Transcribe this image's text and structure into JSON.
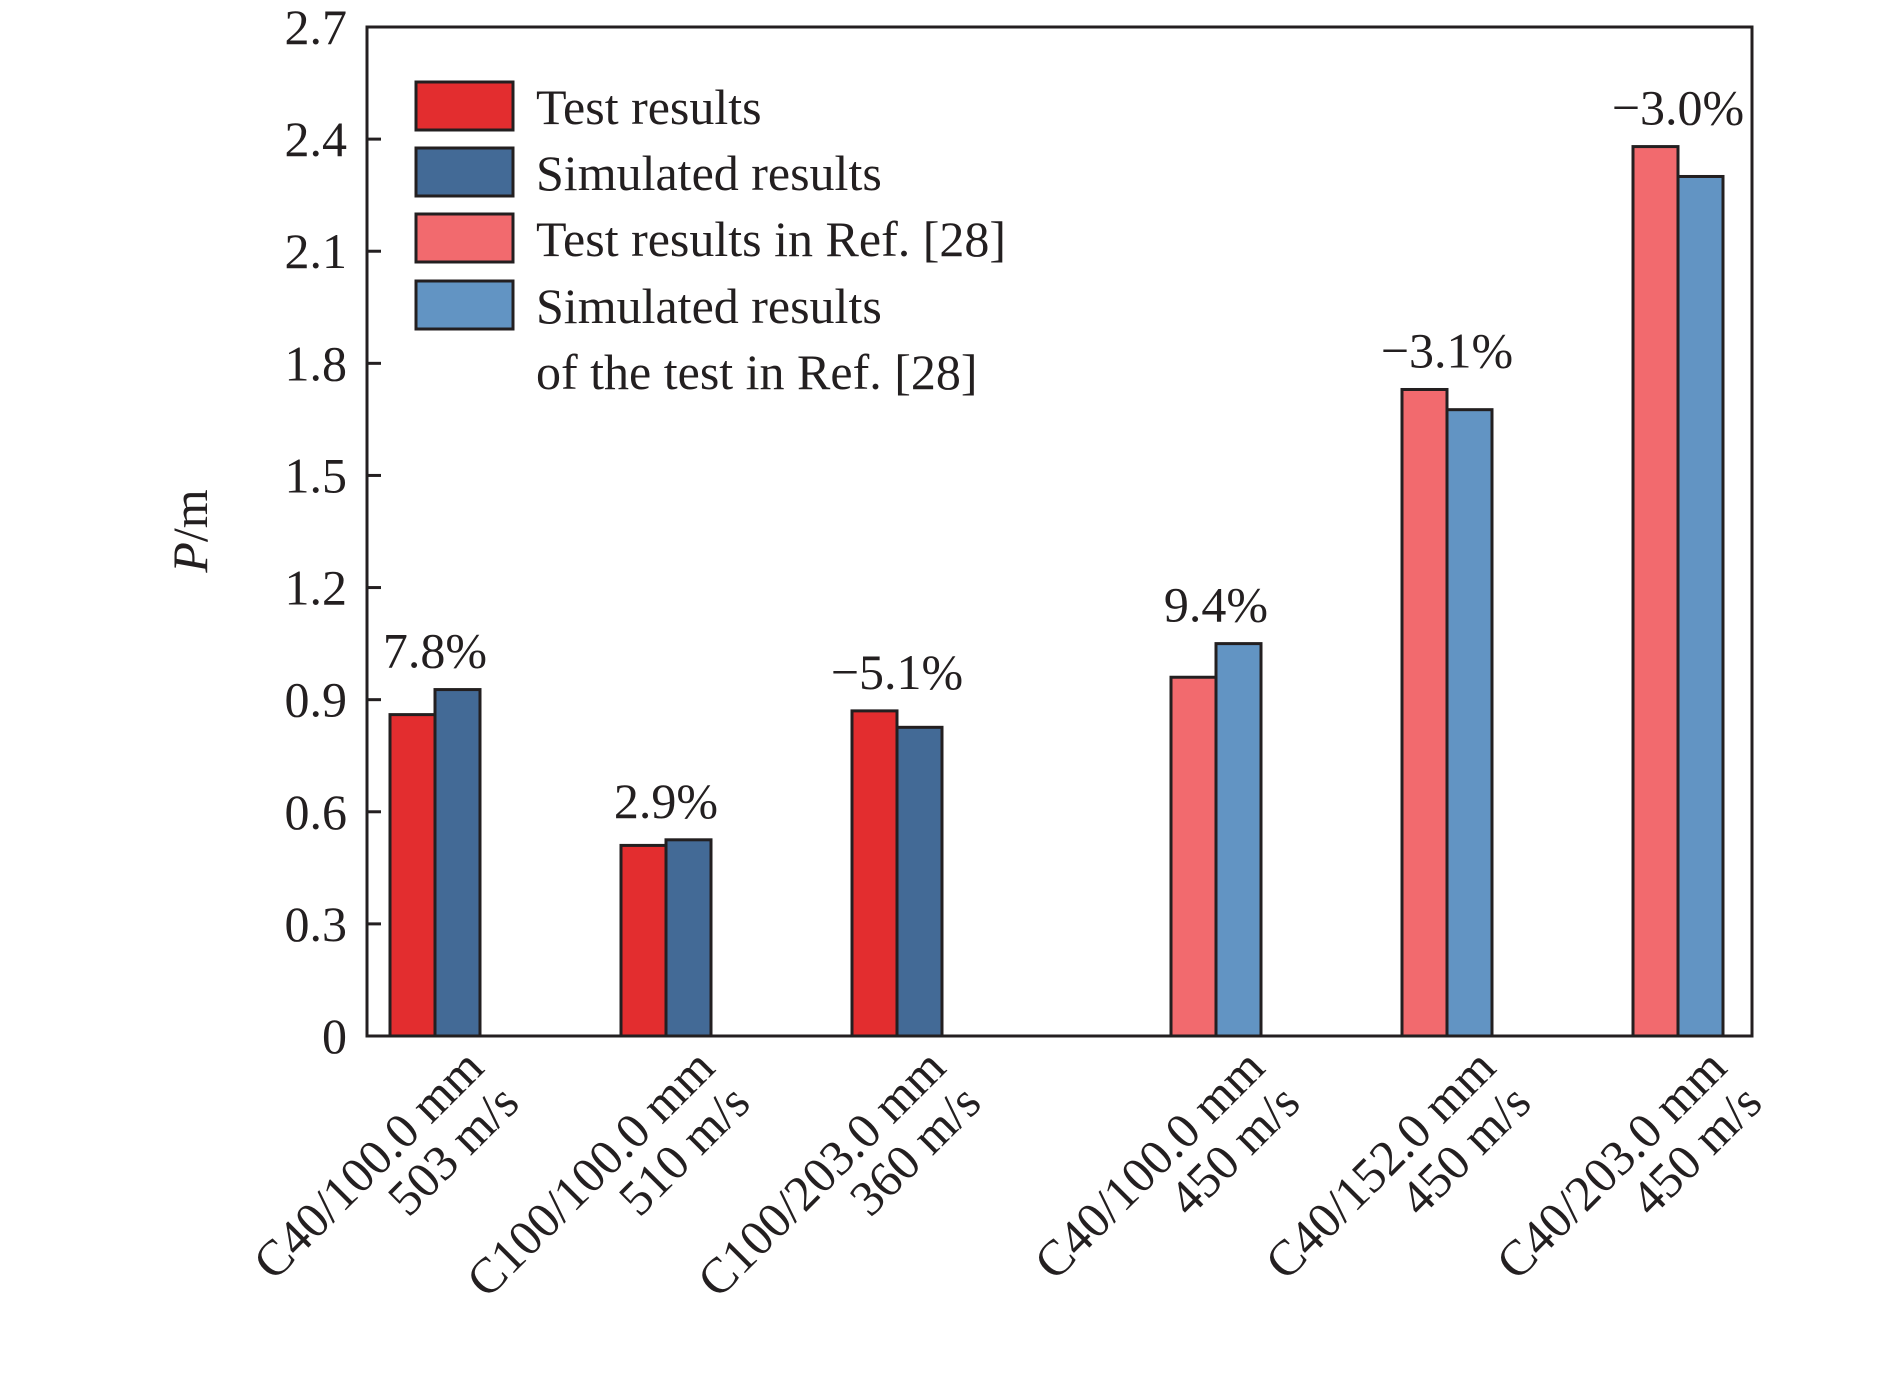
{
  "chart_data": {
    "type": "bar",
    "ylabel_italic": "P",
    "ylabel_unit": "/m",
    "ylim": [
      0,
      2.7
    ],
    "yticks": [
      "0",
      "0.3",
      "0.6",
      "0.9",
      "1.2",
      "1.5",
      "1.8",
      "2.1",
      "2.4",
      "2.7"
    ],
    "grid": false,
    "legend_position": "top-left",
    "legend": [
      {
        "label": "Test results",
        "color": "#e32d2f"
      },
      {
        "label": "Simulated results",
        "color": "#436a96"
      },
      {
        "label": "Test results in Ref. [28]",
        "color": "#f26a6e"
      },
      {
        "label": "Simulated results",
        "label_line2": "of the test in Ref. [28]",
        "color": "#6294c3"
      }
    ],
    "groups": [
      {
        "line1": "C40/100.0 mm",
        "line2": "503 m/s",
        "test": 0.86,
        "simulated": 0.927,
        "annotation": "7.8%",
        "test_color": "#e32d2f",
        "sim_color": "#436a96"
      },
      {
        "line1": "C100/100.0 mm",
        "line2": "510 m/s",
        "test": 0.51,
        "simulated": 0.525,
        "annotation": "2.9%",
        "test_color": "#e32d2f",
        "sim_color": "#436a96"
      },
      {
        "line1": "C100/203.0 mm",
        "line2": "360 m/s",
        "test": 0.87,
        "simulated": 0.826,
        "annotation": "−5.1%",
        "test_color": "#e32d2f",
        "sim_color": "#436a96"
      },
      {
        "line1": "C40/100.0 mm",
        "line2": "450 m/s",
        "test": 0.96,
        "simulated": 1.05,
        "annotation": "9.4%",
        "test_color": "#f26a6e",
        "sim_color": "#6294c3"
      },
      {
        "line1": "C40/152.0 mm",
        "line2": "450 m/s",
        "test": 1.73,
        "simulated": 1.676,
        "annotation": "−3.1%",
        "test_color": "#f26a6e",
        "sim_color": "#6294c3"
      },
      {
        "line1": "C40/203.0 mm",
        "line2": "450 m/s",
        "test": 2.38,
        "simulated": 2.3,
        "annotation": "−3.0%",
        "test_color": "#f26a6e",
        "sim_color": "#6294c3"
      }
    ]
  }
}
